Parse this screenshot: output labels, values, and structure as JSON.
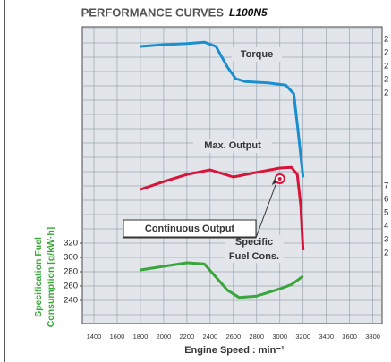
{
  "chart_data": {
    "type": "line",
    "title": "PERFORMANCE CURVES",
    "model": "L100N5",
    "x_label": "Engine Speed : min⁻¹",
    "y_label_lines": [
      "Specification Fuel",
      "Consumption [g/kW·h]"
    ],
    "xlim": [
      1300,
      3880
    ],
    "xticks": [
      1400,
      1600,
      1800,
      2000,
      2200,
      2400,
      2600,
      2800,
      3000,
      3200,
      3400,
      3600,
      3800
    ],
    "ylim": [
      207.5,
      622.5
    ],
    "yticks": [
      240,
      260,
      280,
      300,
      320
    ],
    "ygrid": [
      220,
      240,
      260,
      280,
      300,
      320,
      340,
      360,
      380,
      400,
      420,
      440,
      460,
      480,
      500,
      520,
      540,
      560,
      580,
      600,
      620
    ],
    "grid": true,
    "right_labels_upper": [
      "2",
      "2",
      "2",
      "2",
      "2"
    ],
    "right_labels_lower": [
      "7",
      "6",
      "5",
      "4",
      "3",
      "2"
    ],
    "series": [
      {
        "name": "Torque",
        "color": "#1a8fd0",
        "x": [
          1800,
          2000,
          2200,
          2350,
          2450,
          2550,
          2620,
          2700,
          2900,
          3050,
          3120,
          3160,
          3200
        ],
        "values": [
          595,
          597.5,
          599,
          601,
          595,
          566,
          550,
          546,
          544,
          541,
          529,
          472,
          412
        ]
      },
      {
        "name": "Max. Output",
        "color": "#d8143a",
        "x": [
          1800,
          2000,
          2200,
          2400,
          2600,
          2800,
          3000,
          3100,
          3150,
          3180,
          3200
        ],
        "values": [
          395,
          406,
          416,
          422.5,
          412.5,
          419,
          425,
          426,
          416,
          372.5,
          310
        ]
      },
      {
        "name": "Specific\nFuel Cons.",
        "color": "#3aa53a",
        "x": [
          1800,
          2000,
          2200,
          2350,
          2450,
          2550,
          2650,
          2800,
          3000,
          3100,
          3200
        ],
        "values": [
          282.5,
          287.5,
          292.5,
          291,
          272.5,
          254,
          244,
          246,
          256,
          262,
          274
        ]
      }
    ],
    "annotation": {
      "text": "Continuous Output",
      "x": 3000,
      "value": 410
    }
  }
}
